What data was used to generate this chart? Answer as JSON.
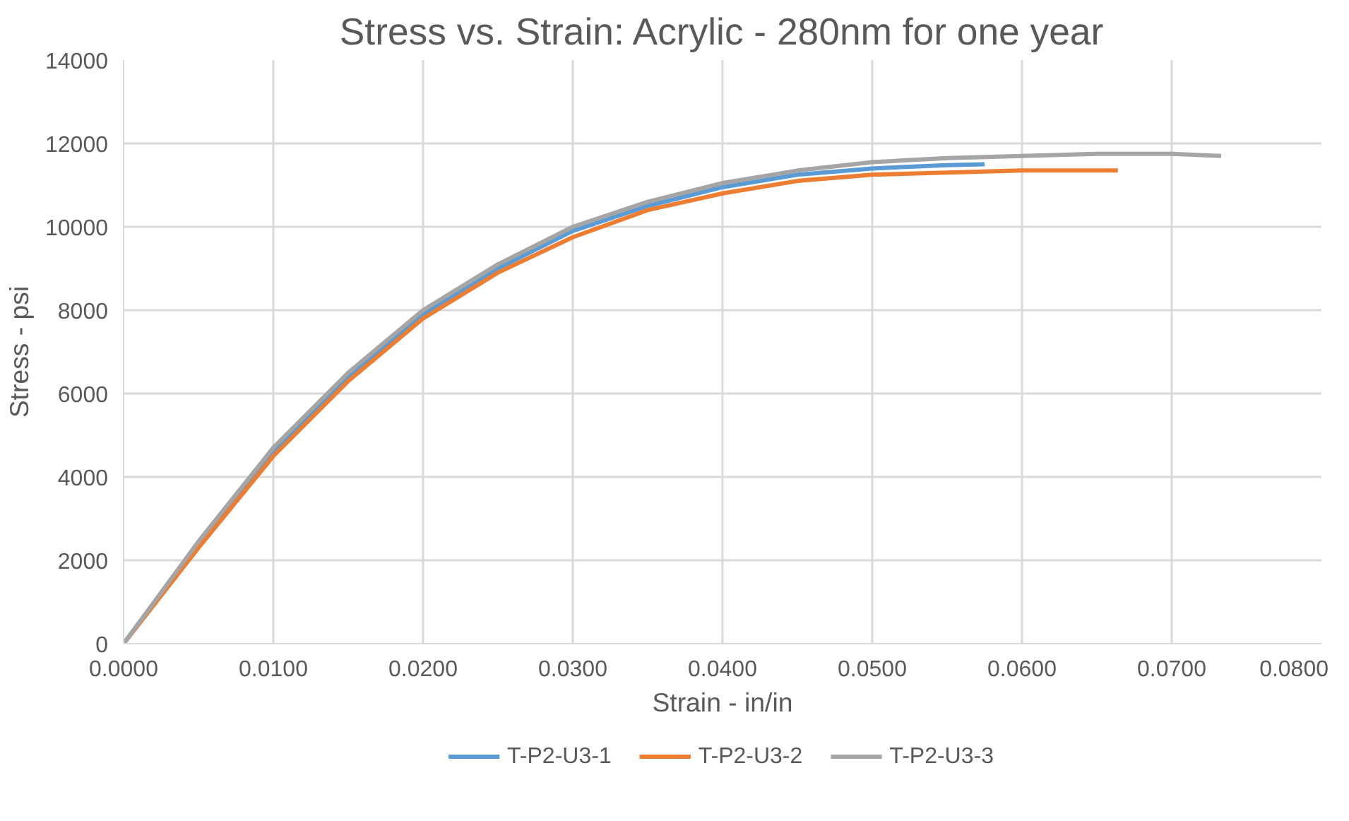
{
  "chart_data": {
    "type": "line",
    "title": "Stress vs. Strain: Acrylic - 280nm for one year",
    "xlabel": "Strain - in/in",
    "ylabel": "Stress - psi",
    "xlim": [
      0,
      0.08
    ],
    "xticks": [
      {
        "value": 0,
        "label": "0.0000"
      },
      {
        "value": 0.01,
        "label": "0.0100"
      },
      {
        "value": 0.02,
        "label": "0.0200"
      },
      {
        "value": 0.03,
        "label": "0.0300"
      },
      {
        "value": 0.04,
        "label": "0.0400"
      },
      {
        "value": 0.05,
        "label": "0.0500"
      },
      {
        "value": 0.06,
        "label": "0.0600"
      },
      {
        "value": 0.07,
        "label": "0.0700"
      },
      {
        "value": 0.08,
        "label": "0.0800"
      }
    ],
    "ylim": [
      0,
      14000
    ],
    "yticks": [
      0,
      2000,
      4000,
      6000,
      8000,
      10000,
      12000,
      14000
    ],
    "grid": true,
    "legend": "bottom",
    "marker": "none",
    "line_style": "solid",
    "series": [
      {
        "name": "T-P2-U3-1",
        "color": "#5b9bd5",
        "x": [
          0,
          0.005,
          0.01,
          0.015,
          0.02,
          0.025,
          0.03,
          0.035,
          0.04,
          0.045,
          0.05,
          0.055,
          0.0575
        ],
        "values": [
          0,
          2400,
          4600,
          6400,
          7900,
          9000,
          9900,
          10500,
          10950,
          11250,
          11400,
          11480,
          11500
        ]
      },
      {
        "name": "T-P2-U3-2",
        "color": "#ed7d31",
        "x": [
          0,
          0.005,
          0.01,
          0.015,
          0.02,
          0.025,
          0.03,
          0.035,
          0.04,
          0.045,
          0.05,
          0.055,
          0.06,
          0.0664
        ],
        "values": [
          0,
          2300,
          4500,
          6300,
          7800,
          8900,
          9750,
          10400,
          10800,
          11100,
          11250,
          11300,
          11350,
          11350
        ]
      },
      {
        "name": "T-P2-U3-3",
        "color": "#a5a5a5",
        "x": [
          0,
          0.005,
          0.01,
          0.015,
          0.02,
          0.025,
          0.03,
          0.035,
          0.04,
          0.045,
          0.05,
          0.055,
          0.06,
          0.065,
          0.07,
          0.0733
        ],
        "values": [
          0,
          2450,
          4700,
          6500,
          8000,
          9100,
          10000,
          10600,
          11050,
          11350,
          11550,
          11650,
          11700,
          11750,
          11750,
          11700
        ]
      }
    ]
  }
}
